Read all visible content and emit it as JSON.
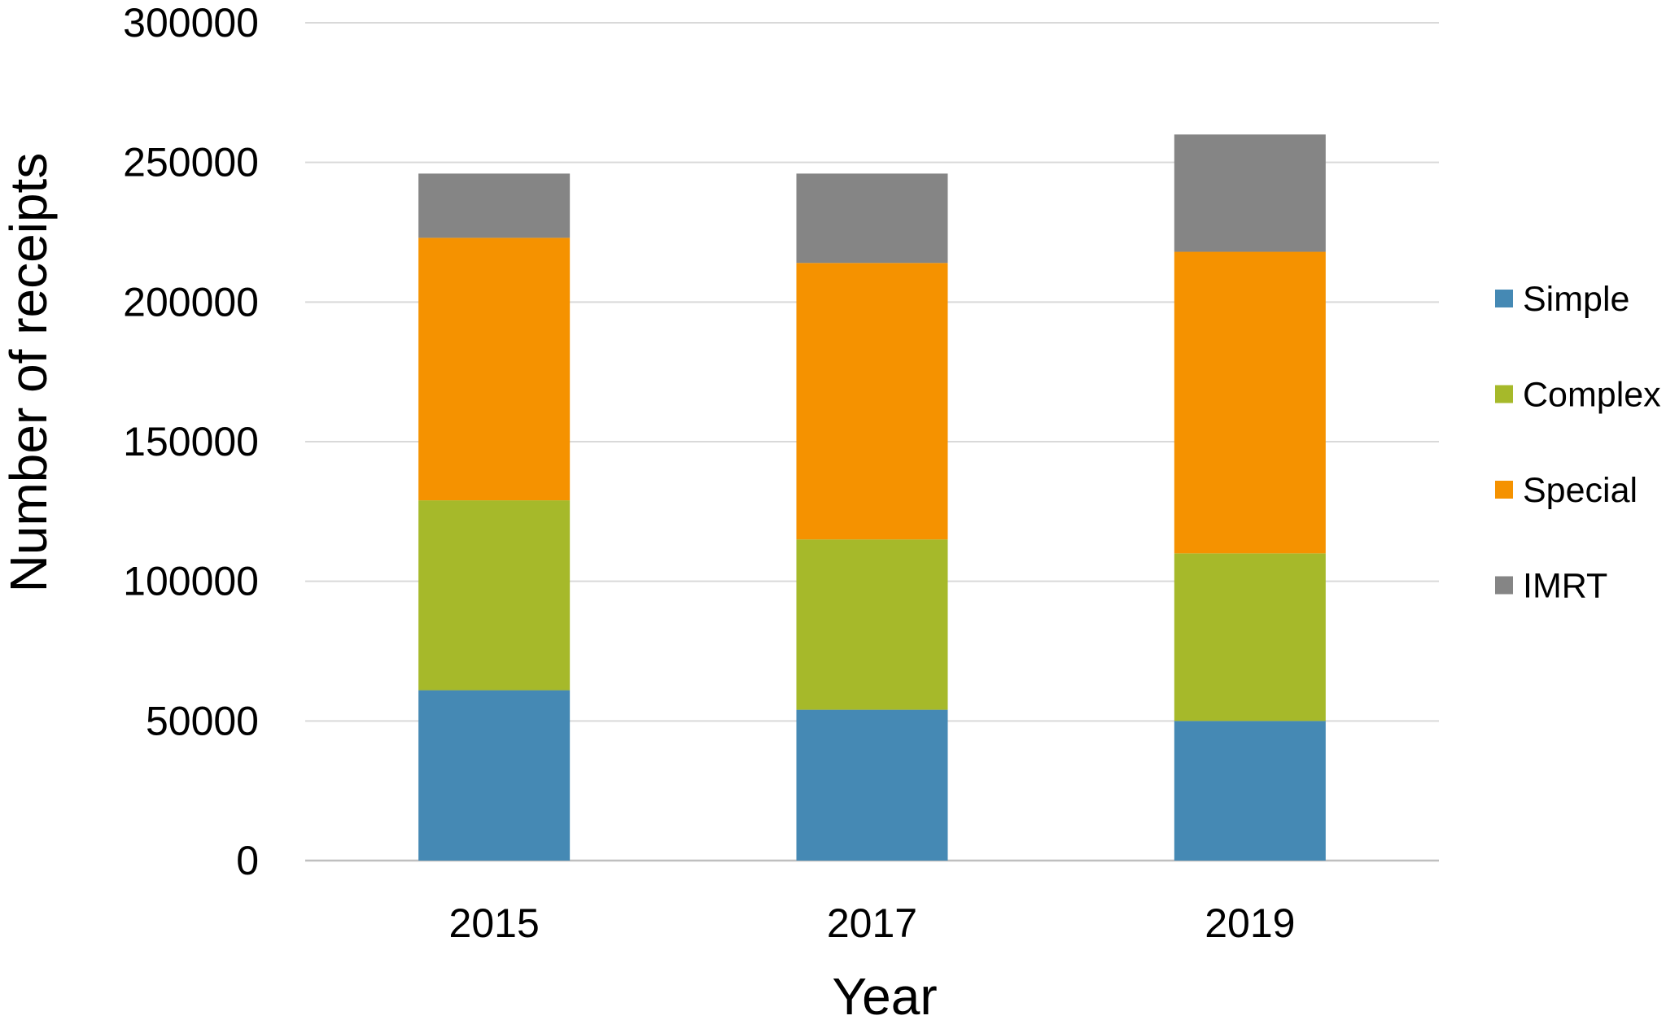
{
  "chart_data": {
    "type": "bar",
    "stacked": true,
    "categories": [
      "2015",
      "2017",
      "2019"
    ],
    "series": [
      {
        "name": "Simple",
        "color": "#4589b4",
        "values": [
          61000,
          54000,
          50000
        ]
      },
      {
        "name": "Complex",
        "color": "#a6b92a",
        "values": [
          68000,
          61000,
          60000
        ]
      },
      {
        "name": "Special",
        "color": "#f59200",
        "values": [
          94000,
          99000,
          108000
        ]
      },
      {
        "name": "IMRT",
        "color": "#858585",
        "values": [
          23000,
          32000,
          42000
        ]
      }
    ],
    "title": "",
    "xlabel": "Year",
    "ylabel": "Number of receipts",
    "ylim": [
      0,
      300000
    ],
    "yticks": [
      "0",
      "50000",
      "100000",
      "150000",
      "200000",
      "250000",
      "300000"
    ],
    "grid": true,
    "legend_position": "right"
  }
}
